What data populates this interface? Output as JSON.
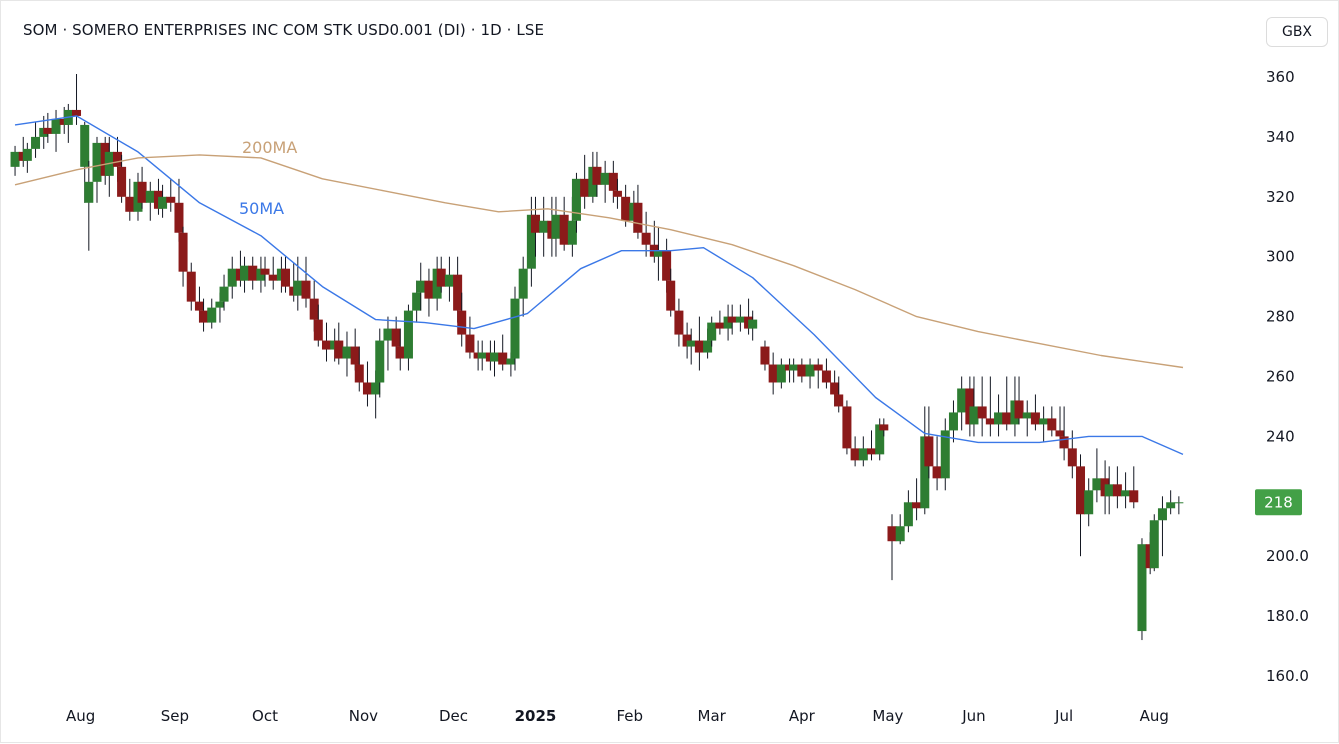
{
  "header": {
    "title": "SOM · SOMERO ENTERPRISES INC COM STK USD0.001 (DI) · 1D · LSE",
    "currency": "GBX"
  },
  "colors": {
    "up": "#2e7d32",
    "down": "#8b1a1a",
    "wick": "#131722",
    "ma50": "#3b78e7",
    "ma200": "#c8a177",
    "badge": "#43a047"
  },
  "chart_data": {
    "type": "candlestick",
    "title": "SOM · SOMERO ENTERPRISES INC COM STK USD0.001 (DI) · 1D · LSE",
    "ylim": [
      150,
      370
    ],
    "y_ticks": [
      "360",
      "340",
      "320",
      "300",
      "280",
      "260",
      "240",
      "200.0",
      "180.0",
      "160.0"
    ],
    "y_tick_values": [
      360,
      340,
      320,
      300,
      280,
      260,
      240,
      200,
      180,
      160
    ],
    "x_ticks": [
      {
        "label": "Aug",
        "index": 16
      },
      {
        "label": "Sep",
        "index": 39
      },
      {
        "label": "Oct",
        "index": 61
      },
      {
        "label": "Nov",
        "index": 85
      },
      {
        "label": "Dec",
        "index": 107
      },
      {
        "label": "2025",
        "index": 127
      },
      {
        "label": "Feb",
        "index": 150
      },
      {
        "label": "Mar",
        "index": 170
      },
      {
        "label": "Apr",
        "index": 192
      },
      {
        "label": "May",
        "index": 213
      },
      {
        "label": "Jun",
        "index": 234
      },
      {
        "label": "Jul",
        "index": 256
      },
      {
        "label": "Aug",
        "index": 278
      }
    ],
    "last_price": "218",
    "last_price_value": 218,
    "series": [
      {
        "name": "50MA",
        "points": [
          [
            0,
            344
          ],
          [
            15,
            347
          ],
          [
            30,
            335
          ],
          [
            45,
            318
          ],
          [
            60,
            307
          ],
          [
            75,
            290
          ],
          [
            88,
            279
          ],
          [
            100,
            278
          ],
          [
            112,
            276
          ],
          [
            125,
            281
          ],
          [
            138,
            296
          ],
          [
            148,
            302
          ],
          [
            160,
            302
          ],
          [
            168,
            303
          ],
          [
            180,
            293
          ],
          [
            195,
            274
          ],
          [
            210,
            253
          ],
          [
            222,
            241
          ],
          [
            235,
            238
          ],
          [
            250,
            238
          ],
          [
            262,
            240
          ],
          [
            275,
            240
          ],
          [
            285,
            234
          ]
        ]
      },
      {
        "name": "200MA",
        "points": [
          [
            0,
            324
          ],
          [
            15,
            329
          ],
          [
            30,
            333
          ],
          [
            45,
            334
          ],
          [
            60,
            333
          ],
          [
            75,
            326
          ],
          [
            90,
            322
          ],
          [
            105,
            318
          ],
          [
            118,
            315
          ],
          [
            130,
            316
          ],
          [
            145,
            313
          ],
          [
            160,
            309
          ],
          [
            175,
            304
          ],
          [
            190,
            297
          ],
          [
            205,
            289
          ],
          [
            220,
            280
          ],
          [
            235,
            275
          ],
          [
            250,
            271
          ],
          [
            265,
            267
          ],
          [
            285,
            263
          ]
        ]
      }
    ],
    "candles": [
      [
        330,
        337,
        327,
        335
      ],
      [
        335,
        340,
        330,
        332
      ],
      [
        332,
        338,
        328,
        336
      ],
      [
        336,
        345,
        333,
        340
      ],
      [
        340,
        347,
        336,
        343
      ],
      [
        343,
        348,
        338,
        341
      ],
      [
        341,
        349,
        335,
        346
      ],
      [
        346,
        350,
        341,
        344
      ],
      [
        344,
        351,
        338,
        349
      ],
      [
        349,
        361,
        344,
        347
      ],
      [
        330,
        345,
        318,
        344
      ],
      [
        318,
        332,
        302,
        325
      ],
      [
        325,
        340,
        318,
        338
      ],
      [
        338,
        340,
        324,
        327
      ],
      [
        327,
        340,
        320,
        335
      ],
      [
        335,
        340,
        325,
        330
      ],
      [
        330,
        334,
        318,
        320
      ],
      [
        320,
        326,
        312,
        315
      ],
      [
        315,
        328,
        312,
        325
      ],
      [
        325,
        330,
        316,
        318
      ],
      [
        318,
        325,
        312,
        322
      ],
      [
        322,
        326,
        314,
        316
      ],
      [
        316,
        324,
        313,
        320
      ],
      [
        320,
        326,
        315,
        318
      ],
      [
        318,
        326,
        305,
        308
      ],
      [
        308,
        310,
        290,
        295
      ],
      [
        295,
        298,
        282,
        285
      ],
      [
        285,
        290,
        278,
        282
      ],
      [
        282,
        286,
        275,
        278
      ],
      [
        278,
        286,
        276,
        283
      ],
      [
        283,
        288,
        278,
        285
      ],
      [
        285,
        294,
        282,
        290
      ],
      [
        290,
        300,
        286,
        296
      ],
      [
        296,
        302,
        290,
        292
      ],
      [
        292,
        300,
        288,
        297
      ],
      [
        297,
        300,
        289,
        292
      ],
      [
        292,
        300,
        288,
        296
      ],
      [
        296,
        300,
        290,
        294
      ],
      [
        294,
        300,
        289,
        292
      ],
      [
        292,
        300,
        288,
        296
      ],
      [
        296,
        300,
        288,
        290
      ],
      [
        290,
        298,
        285,
        287
      ],
      [
        287,
        300,
        282,
        292
      ],
      [
        292,
        300,
        283,
        286
      ],
      [
        286,
        292,
        275,
        279
      ],
      [
        279,
        284,
        270,
        272
      ],
      [
        272,
        278,
        265,
        269
      ],
      [
        269,
        276,
        265,
        272
      ],
      [
        272,
        278,
        264,
        266
      ],
      [
        266,
        275,
        260,
        270
      ],
      [
        270,
        276,
        262,
        264
      ],
      [
        264,
        270,
        255,
        258
      ],
      [
        258,
        265,
        250,
        254
      ],
      [
        254,
        262,
        246,
        258
      ],
      [
        258,
        276,
        253,
        272
      ],
      [
        272,
        280,
        262,
        276
      ],
      [
        276,
        280,
        266,
        270
      ],
      [
        270,
        276,
        262,
        266
      ],
      [
        266,
        284,
        262,
        282
      ],
      [
        282,
        292,
        278,
        288
      ],
      [
        288,
        298,
        282,
        292
      ],
      [
        292,
        296,
        280,
        286
      ],
      [
        286,
        300,
        282,
        296
      ],
      [
        296,
        300,
        288,
        290
      ],
      [
        290,
        300,
        285,
        294
      ],
      [
        294,
        300,
        278,
        282
      ],
      [
        282,
        288,
        270,
        274
      ],
      [
        274,
        280,
        266,
        268
      ],
      [
        268,
        272,
        262,
        266
      ],
      [
        266,
        272,
        262,
        268
      ],
      [
        268,
        272,
        262,
        265
      ],
      [
        265,
        272,
        260,
        268
      ],
      [
        268,
        274,
        262,
        264
      ],
      [
        264,
        268,
        260,
        266
      ],
      [
        266,
        290,
        262,
        286
      ],
      [
        286,
        300,
        280,
        296
      ],
      [
        296,
        320,
        290,
        314
      ],
      [
        314,
        320,
        300,
        308
      ],
      [
        308,
        320,
        300,
        312
      ],
      [
        312,
        320,
        300,
        306
      ],
      [
        306,
        320,
        300,
        314
      ],
      [
        314,
        320,
        302,
        304
      ],
      [
        304,
        320,
        300,
        312
      ],
      [
        312,
        328,
        308,
        326
      ],
      [
        326,
        334,
        316,
        320
      ],
      [
        320,
        335,
        318,
        330
      ],
      [
        330,
        335,
        320,
        324
      ],
      [
        324,
        332,
        318,
        328
      ],
      [
        328,
        332,
        318,
        322
      ],
      [
        322,
        326,
        316,
        320
      ],
      [
        320,
        324,
        310,
        312
      ],
      [
        312,
        322,
        308,
        318
      ],
      [
        318,
        324,
        306,
        308
      ],
      [
        308,
        315,
        300,
        304
      ],
      [
        304,
        312,
        298,
        300
      ],
      [
        300,
        310,
        292,
        302
      ],
      [
        302,
        306,
        288,
        292
      ],
      [
        292,
        296,
        280,
        282
      ],
      [
        282,
        286,
        270,
        274
      ],
      [
        274,
        278,
        266,
        270
      ],
      [
        270,
        276,
        264,
        272
      ],
      [
        272,
        280,
        262,
        268
      ],
      [
        268,
        276,
        266,
        272
      ],
      [
        272,
        280,
        270,
        278
      ],
      [
        278,
        282,
        274,
        276
      ],
      [
        276,
        284,
        272,
        280
      ],
      [
        280,
        284,
        274,
        278
      ],
      [
        278,
        284,
        275,
        280
      ],
      [
        280,
        286,
        274,
        276
      ],
      [
        276,
        282,
        272,
        279
      ]
    ],
    "candles_tail": [
      [
        270,
        272,
        262,
        264
      ],
      [
        264,
        268,
        254,
        258
      ],
      [
        258,
        266,
        256,
        264
      ],
      [
        264,
        266,
        258,
        262
      ],
      [
        262,
        266,
        258,
        264
      ],
      [
        264,
        266,
        258,
        260
      ],
      [
        260,
        266,
        256,
        264
      ],
      [
        264,
        266,
        256,
        262
      ],
      [
        262,
        266,
        256,
        258
      ],
      [
        258,
        262,
        250,
        254
      ],
      [
        254,
        260,
        248,
        250
      ],
      [
        250,
        252,
        234,
        236
      ],
      [
        236,
        240,
        230,
        232
      ],
      [
        232,
        240,
        230,
        236
      ],
      [
        236,
        242,
        232,
        234
      ],
      [
        234,
        246,
        232,
        244
      ],
      [
        244,
        246,
        240,
        242
      ],
      [
        210,
        214,
        192,
        205
      ],
      [
        205,
        214,
        204,
        210
      ],
      [
        210,
        222,
        208,
        218
      ],
      [
        218,
        226,
        212,
        216
      ],
      [
        216,
        250,
        214,
        240
      ],
      [
        240,
        250,
        226,
        230
      ],
      [
        230,
        240,
        222,
        226
      ],
      [
        226,
        246,
        222,
        242
      ],
      [
        242,
        252,
        238,
        248
      ],
      [
        248,
        260,
        242,
        256
      ],
      [
        256,
        260,
        240,
        244
      ],
      [
        244,
        260,
        240,
        250
      ],
      [
        250,
        260,
        240,
        246
      ],
      [
        246,
        260,
        240,
        244
      ],
      [
        244,
        254,
        240,
        248
      ],
      [
        248,
        260,
        242,
        244
      ],
      [
        244,
        260,
        240,
        252
      ],
      [
        252,
        260,
        244,
        246
      ],
      [
        246,
        252,
        240,
        248
      ],
      [
        248,
        254,
        242,
        244
      ],
      [
        244,
        250,
        238,
        246
      ],
      [
        246,
        250,
        240,
        242
      ],
      [
        242,
        250,
        236,
        240
      ],
      [
        240,
        250,
        232,
        236
      ],
      [
        236,
        242,
        226,
        230
      ],
      [
        230,
        234,
        200,
        214
      ],
      [
        214,
        226,
        210,
        222
      ],
      [
        222,
        236,
        218,
        226
      ],
      [
        226,
        232,
        214,
        220
      ],
      [
        220,
        230,
        214,
        224
      ],
      [
        224,
        230,
        216,
        220
      ],
      [
        220,
        228,
        216,
        222
      ],
      [
        222,
        230,
        216,
        218
      ],
      [
        175,
        206,
        172,
        204
      ],
      [
        204,
        208,
        194,
        196
      ],
      [
        196,
        214,
        195,
        212
      ],
      [
        212,
        220,
        200,
        216
      ],
      [
        216,
        222,
        214,
        218
      ],
      [
        218,
        220,
        214,
        218
      ]
    ]
  }
}
